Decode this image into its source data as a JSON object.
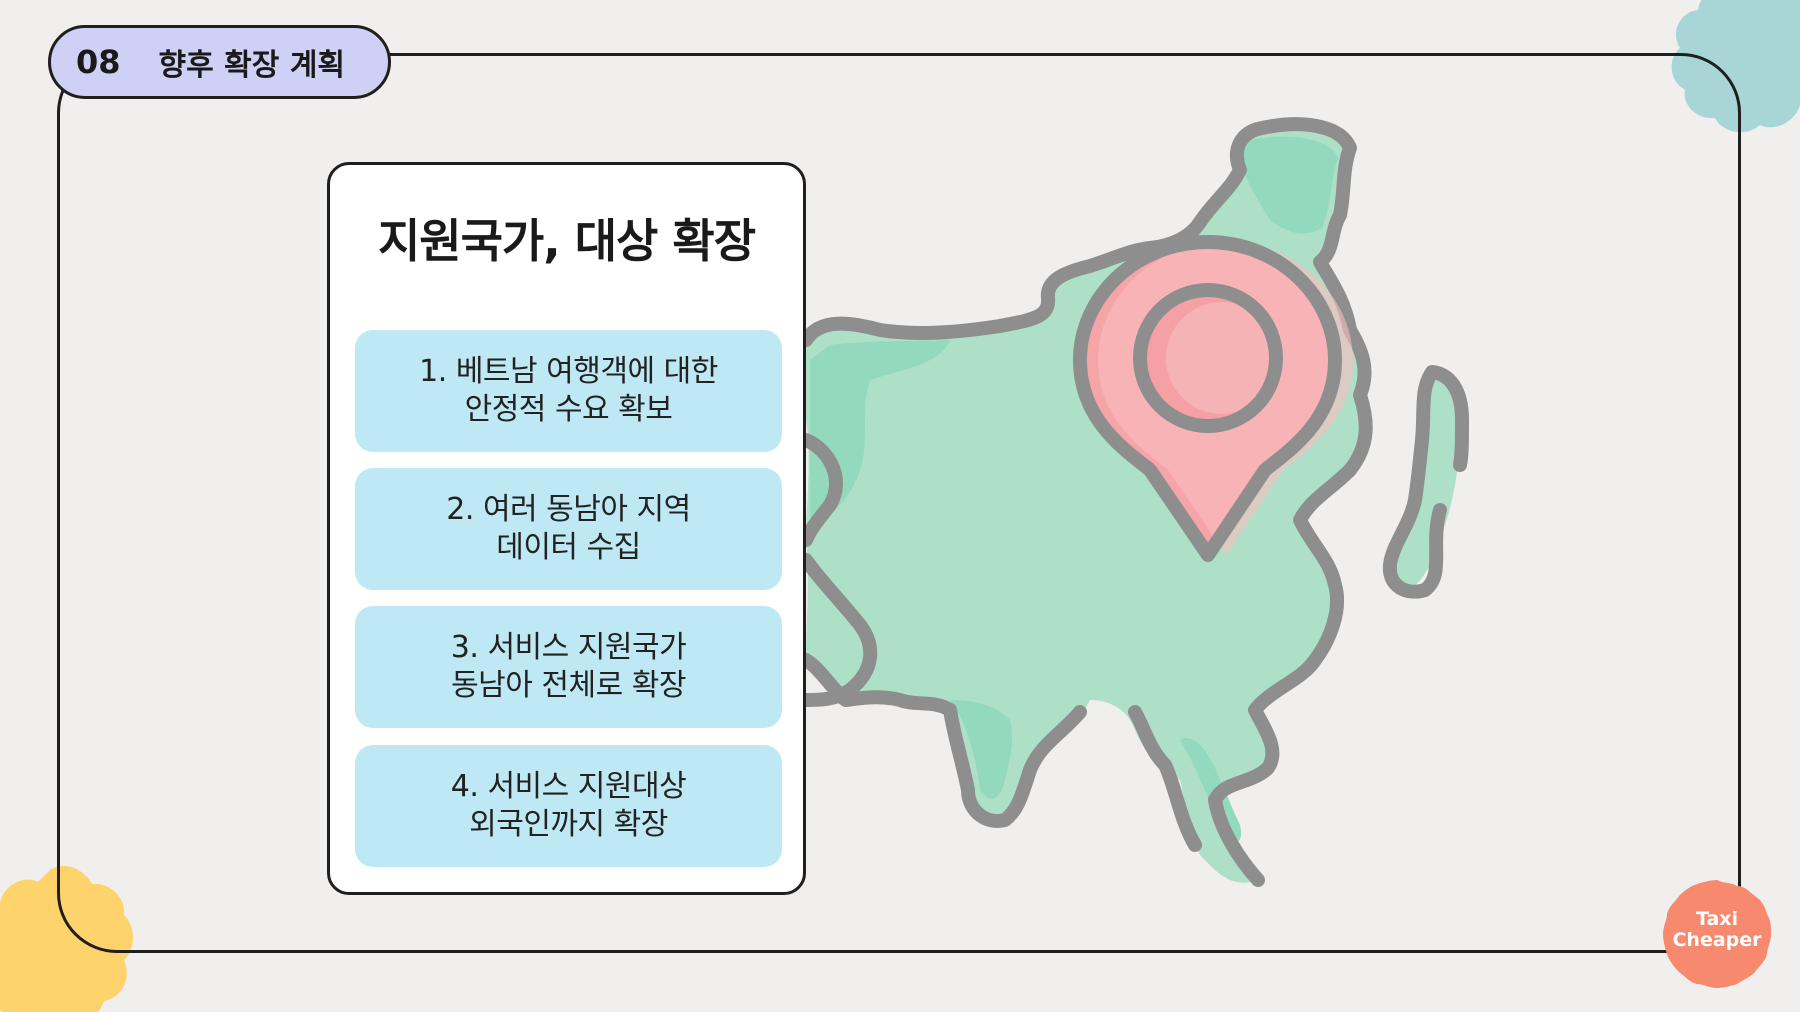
{
  "header": {
    "section_number": "08",
    "section_title": "향후 확장 계획"
  },
  "card": {
    "title": "지원국가, 대상 확장",
    "items": [
      {
        "line1": "1. 베트남 여행객에 대한",
        "line2": "안정적 수요 확보"
      },
      {
        "line1": "2. 여러 동남아 지역",
        "line2": "데이터 수집"
      },
      {
        "line1": "3. 서비스 지원국가",
        "line2": "동남아 전체로 확장"
      },
      {
        "line1": "4. 서비스 지원대상",
        "line2": "외국인까지 확장"
      }
    ]
  },
  "logo": {
    "line1": "Taxi",
    "line2": "Cheaper"
  },
  "colors": {
    "background": "#f0efed",
    "tag_fill": "#cfd0f5",
    "item_fill": "#bfe8f5",
    "map_fill": "#aee0c8",
    "map_outline": "#8e8e8e",
    "pin_fill": "#f5a5a8",
    "logo_fill": "#f7896e",
    "blob_yellow": "#ffd36b",
    "blob_teal": "#a8d5d6"
  },
  "icons": {
    "map": "asia-map-illustration",
    "pin": "location-pin-icon"
  }
}
